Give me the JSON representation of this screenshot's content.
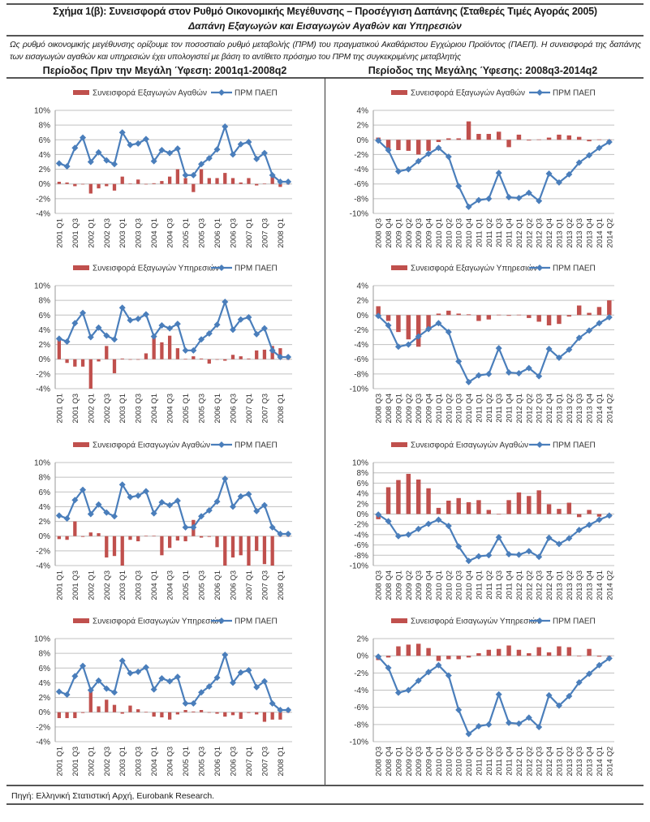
{
  "header": {
    "title": "Σχήμα 1(β): Συνεισφορά στον Ρυθμό Οικονομικής Μεγέθυνσης – Προσέγγιση Δαπάνης (Σταθερές Τιμές Αγοράς 2005)",
    "subtitle": "Δαπάνη Εξαγωγών και Εισαγωγών Αγαθών και Υπηρεσιών",
    "intro": "Ως ρυθμό οικονομικής μεγέθυνσης ορίζουμε τον ποσοστιαίο ρυθμό μεταβολής (ΠΡΜ) του πραγματικού Ακαθάριστου Εγχώριου Προϊόντος (ΠΑΕΠ). Η συνεισφορά της δαπάνης των εισαγωγών αγαθών και υπηρεσιών έχει υπολογιστεί με βάση το αντίθετο πρόσημο του ΠΡΜ της συγκεκριμένης μεταβλητής",
    "period_left": "Περίοδος Πριν την Μεγάλη Ύφεση: 2001q1-2008q2",
    "period_right": "Περίοδος της Μεγάλης Ύφεσης: 2008q3-2014q2"
  },
  "footer": {
    "source": "Πηγή: Ελληνική Στατιστική Αρχή, Eurobank Research."
  },
  "colors": {
    "bar": "#c0504d",
    "line": "#4a7ebb",
    "grid": "#c0c0c0"
  },
  "chart_data": [
    {
      "type": "bar+line",
      "period": "pre",
      "series_bar": "Συνεισφορά Εξαγωγών Αγαθών",
      "series_line": "ΠΡΜ ΠΑΕΠ",
      "ylim": [
        -4,
        10
      ],
      "bar_values": [
        0.3,
        0.2,
        -0.3,
        0,
        -1.3,
        -0.6,
        -0.3,
        -0.9,
        1.0,
        0.05,
        0.6,
        0,
        0.1,
        0.4,
        1.0,
        2.0,
        0.8,
        -1.1,
        2.0,
        0.8,
        0.8,
        1.5,
        0.8,
        0.2,
        0.8,
        -0.2,
        0.05,
        1.1,
        -0.4,
        0
      ],
      "line_values": [
        2.8,
        2.4,
        4.9,
        6.3,
        3.0,
        4.3,
        3.2,
        2.7,
        7.0,
        5.3,
        5.5,
        6.1,
        3.1,
        4.6,
        4.2,
        4.8,
        1.2,
        1.2,
        2.7,
        3.5,
        4.7,
        7.8,
        4.0,
        5.4,
        5.7,
        3.4,
        4.2,
        1.2,
        0.3,
        0.3
      ]
    },
    {
      "type": "bar+line",
      "period": "crisis",
      "series_bar": "Συνεισφορά Εξαγωγών Αγαθών",
      "series_line": "ΠΡΜ ΠΑΕΠ",
      "ylim": [
        -10,
        4
      ],
      "bar_values": [
        0.3,
        -1.5,
        -1.4,
        -1.5,
        -2.0,
        -1.5,
        -0.3,
        0.2,
        0.2,
        2.5,
        0.8,
        0.8,
        1.1,
        -1.0,
        0.7,
        -0.1,
        0.05,
        0.3,
        0.7,
        0.6,
        0.4,
        -0.2,
        0.05,
        0
      ],
      "line_values": [
        -0.1,
        -1.4,
        -4.3,
        -4.0,
        -2.9,
        -1.9,
        -1.1,
        -2.3,
        -6.3,
        -9.1,
        -8.2,
        -8.0,
        -4.5,
        -7.8,
        -7.9,
        -7.2,
        -8.3,
        -4.6,
        -5.8,
        -4.7,
        -3.1,
        -2.1,
        -1.1,
        -0.3
      ]
    },
    {
      "type": "bar+line",
      "period": "pre",
      "series_bar": "Συνεισφορά Εξαγωγών Υπηρεσιών",
      "series_line": "ΠΡΜ ΠΑΕΠ",
      "ylim": [
        -4,
        10
      ],
      "bar_values": [
        2.7,
        -0.5,
        -1.0,
        -1.0,
        -4.2,
        -0.3,
        1.8,
        -1.9,
        0.1,
        -0.05,
        0,
        0.8,
        2.9,
        2.3,
        3.2,
        1.5,
        0.05,
        0.4,
        0.1,
        -0.6,
        -0.05,
        -0.2,
        0.6,
        0.4,
        0.1,
        1.2,
        1.3,
        1.8,
        1.5,
        0
      ],
      "line_values": [
        2.8,
        2.4,
        4.9,
        6.3,
        3.0,
        4.3,
        3.2,
        2.7,
        7.0,
        5.3,
        5.5,
        6.1,
        3.1,
        4.6,
        4.2,
        4.8,
        1.2,
        1.2,
        2.7,
        3.5,
        4.7,
        7.8,
        4.0,
        5.4,
        5.7,
        3.4,
        4.2,
        1.2,
        0.3,
        0.3
      ]
    },
    {
      "type": "bar+line",
      "period": "crisis",
      "series_bar": "Συνεισφορά Εξαγωγών Υπηρεσιών",
      "series_line": "ΠΡΜ ΠΑΕΠ",
      "ylim": [
        -10,
        4
      ],
      "bar_values": [
        1.2,
        -0.8,
        -2.3,
        -3.3,
        -4.3,
        -1.9,
        0.2,
        0.6,
        0.2,
        0.1,
        -0.8,
        -0.6,
        0.05,
        -0.1,
        0.05,
        -0.4,
        -0.9,
        -1.4,
        -1.2,
        -0.2,
        1.3,
        0.3,
        1.1,
        2.0
      ],
      "line_values": [
        -0.1,
        -1.4,
        -4.3,
        -4.0,
        -2.9,
        -1.9,
        -1.1,
        -2.3,
        -6.3,
        -9.1,
        -8.2,
        -8.0,
        -4.5,
        -7.8,
        -7.9,
        -7.2,
        -8.3,
        -4.6,
        -5.8,
        -4.7,
        -3.1,
        -2.1,
        -1.1,
        -0.3
      ]
    },
    {
      "type": "bar+line",
      "period": "pre",
      "series_bar": "Συνεισφορά Εισαγωγών Αγαθών",
      "series_line": "ΠΡΜ ΠΑΕΠ",
      "ylim": [
        -4,
        10
      ],
      "bar_values": [
        -0.4,
        -0.5,
        2.0,
        -0.1,
        0.5,
        0.4,
        -2.9,
        -2.7,
        -4.2,
        -0.5,
        -0.7,
        0.05,
        0.05,
        -2.6,
        -1.6,
        -0.6,
        -0.7,
        2.2,
        -0.2,
        -0.1,
        -1.5,
        -4.2,
        -2.9,
        -2.6,
        -4.2,
        -2.0,
        -3.8,
        -4.2,
        0,
        0
      ],
      "line_values": [
        2.8,
        2.4,
        4.9,
        6.3,
        3.0,
        4.3,
        3.2,
        2.7,
        7.0,
        5.3,
        5.5,
        6.1,
        3.1,
        4.6,
        4.2,
        4.8,
        1.2,
        1.2,
        2.7,
        3.5,
        4.7,
        7.8,
        4.0,
        5.4,
        5.7,
        3.4,
        4.2,
        1.2,
        0.3,
        0.3
      ]
    },
    {
      "type": "bar+line",
      "period": "crisis",
      "series_bar": "Συνεισφορά Εισαγωγών Αγαθών",
      "series_line": "ΠΡΜ ΠΑΕΠ",
      "ylim": [
        -10,
        10
      ],
      "bar_values": [
        -1.0,
        5.2,
        6.6,
        7.8,
        6.7,
        5.0,
        1.2,
        2.6,
        3.1,
        2.3,
        2.7,
        0.8,
        0,
        2.7,
        4.2,
        3.5,
        4.6,
        1.9,
        1.0,
        2.2,
        -0.6,
        0.8,
        -0.5,
        -0.6
      ],
      "line_values": [
        -0.1,
        -1.4,
        -4.3,
        -4.0,
        -2.9,
        -1.9,
        -1.1,
        -2.3,
        -6.3,
        -9.1,
        -8.2,
        -8.0,
        -4.5,
        -7.8,
        -7.9,
        -7.2,
        -8.3,
        -4.6,
        -5.8,
        -4.7,
        -3.1,
        -2.1,
        -1.1,
        -0.3
      ]
    },
    {
      "type": "bar+line",
      "period": "pre",
      "series_bar": "Συνεισφορά Εισαγωγών Υπηρεσιών",
      "series_line": "ΠΡΜ ΠΑΕΠ",
      "ylim": [
        -4,
        10
      ],
      "bar_values": [
        -0.8,
        -0.8,
        -0.8,
        -0.1,
        2.9,
        0.8,
        1.7,
        1.0,
        -0.2,
        0.9,
        0.4,
        0.05,
        -0.6,
        -0.7,
        -1.0,
        -0.3,
        0.3,
        0.1,
        0.3,
        0,
        -0.2,
        -0.6,
        -0.4,
        -0.9,
        -0.1,
        -0.3,
        -1.3,
        -1.0,
        -1.0,
        0
      ],
      "line_values": [
        2.8,
        2.4,
        4.9,
        6.3,
        3.0,
        4.3,
        3.2,
        2.7,
        7.0,
        5.3,
        5.5,
        6.1,
        3.1,
        4.6,
        4.2,
        4.8,
        1.2,
        1.2,
        2.7,
        3.5,
        4.7,
        7.8,
        4.0,
        5.4,
        5.7,
        3.4,
        4.2,
        1.2,
        0.3,
        0.3
      ]
    },
    {
      "type": "bar+line",
      "period": "crisis",
      "series_bar": "Συνεισφορά Εισαγωγών Υπηρεσιών",
      "series_line": "ΠΡΜ ΠΑΕΠ",
      "ylim": [
        -10,
        2
      ],
      "bar_values": [
        -0.5,
        -0.2,
        1.1,
        1.3,
        1.4,
        0.9,
        -0.6,
        -0.4,
        -0.4,
        -0.2,
        0.3,
        0.7,
        0.8,
        1.2,
        0.7,
        0.3,
        1.0,
        0.4,
        1.1,
        1.0,
        0,
        0.8,
        -0.1,
        0
      ],
      "line_values": [
        -0.1,
        -1.4,
        -4.3,
        -4.0,
        -2.9,
        -1.9,
        -1.1,
        -2.3,
        -6.3,
        -9.1,
        -8.2,
        -8.0,
        -4.5,
        -7.8,
        -7.9,
        -7.2,
        -8.3,
        -4.6,
        -5.8,
        -4.7,
        -3.1,
        -2.1,
        -1.1,
        -0.3
      ]
    }
  ],
  "axes": {
    "pre": {
      "tick_labels": [
        "2001 Q1",
        "2001 Q3",
        "2002 Q1",
        "2002 Q3",
        "2003 Q1",
        "2003 Q3",
        "2004 Q1",
        "2004 Q3",
        "2005 Q1",
        "2005 Q3",
        "2006 Q1",
        "2006 Q3",
        "2007 Q1",
        "2007 Q3",
        "2008 Q1"
      ],
      "tick_every": 2,
      "count": 30
    },
    "crisis": {
      "tick_labels": [
        "2008 Q3",
        "2008 Q4",
        "2009 Q1",
        "2009 Q2",
        "2009 Q3",
        "2009 Q4",
        "2010 Q1",
        "2010 Q2",
        "2010 Q3",
        "2010 Q4",
        "2011 Q1",
        "2011 Q2",
        "2011 Q3",
        "2011 Q4",
        "2012 Q1",
        "2012 Q2",
        "2012 Q3",
        "2012 Q4",
        "2013 Q1",
        "2013 Q2",
        "2013 Q3",
        "2013 Q4",
        "2014 Q1",
        "2014 Q2"
      ],
      "tick_every": 1,
      "count": 24
    }
  }
}
